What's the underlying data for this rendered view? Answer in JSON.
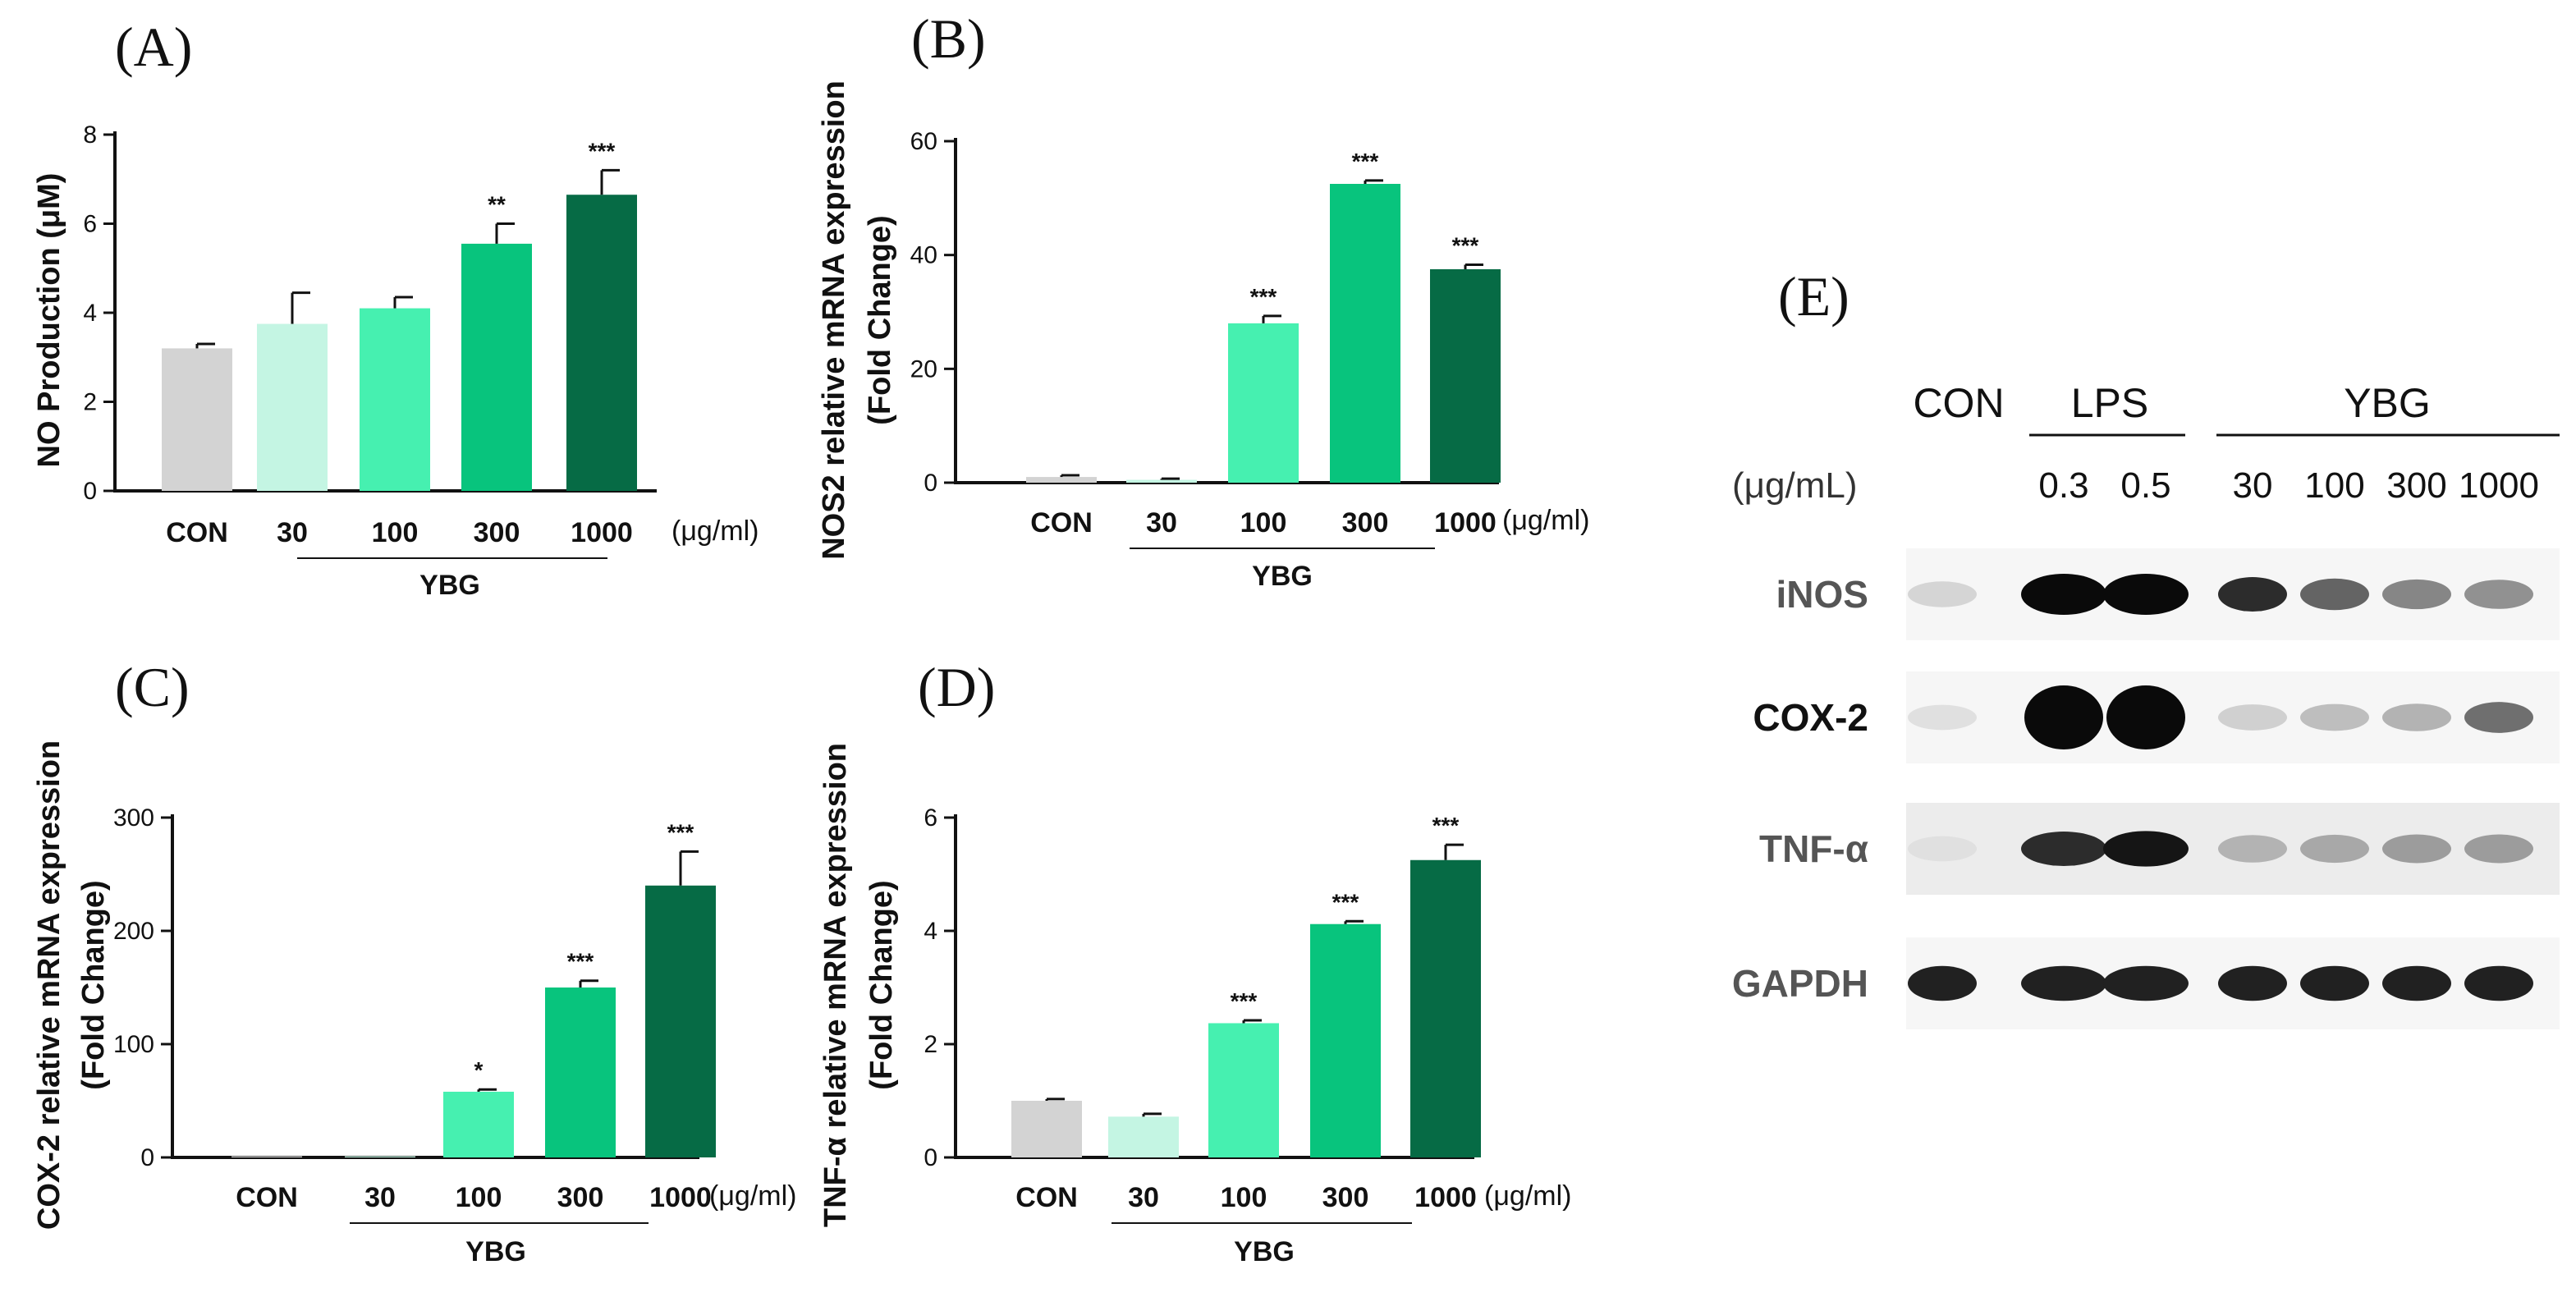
{
  "colors": {
    "CON": "#d3d3d3",
    "30": "#c4f5e3",
    "100": "#46f0b0",
    "300": "#08c47d",
    "1000": "#066b45",
    "axis": "#111111"
  },
  "chart_data": [
    {
      "panel": "(A)",
      "type": "bar",
      "categories": [
        "CON",
        "30",
        "100",
        "300",
        "1000"
      ],
      "values": [
        3.2,
        3.75,
        4.1,
        5.55,
        6.65
      ],
      "errors": [
        0.1,
        0.7,
        0.25,
        0.45,
        0.55
      ],
      "significance": [
        "",
        "",
        "",
        "**",
        "***"
      ],
      "ylabel": "NO Production (μM)",
      "ylim": [
        0,
        8
      ],
      "yticks": [
        "0",
        "2",
        "4",
        "6",
        "8"
      ],
      "unit_label": "(μg/ml)",
      "group_label": "YBG"
    },
    {
      "panel": "(B)",
      "type": "bar",
      "categories": [
        "CON",
        "30",
        "100",
        "300",
        "1000"
      ],
      "values": [
        1.0,
        0.5,
        28,
        52.5,
        37.5
      ],
      "errors": [
        0.3,
        0.2,
        1.3,
        0.6,
        0.8
      ],
      "significance": [
        "",
        "",
        "***",
        "***",
        "***"
      ],
      "ylabel": [
        "NOS2 relative mRNA expression",
        "(Fold Change)"
      ],
      "ylim": [
        0,
        60
      ],
      "yticks": [
        "0",
        "20",
        "40",
        "60"
      ],
      "unit_label": "(μg/ml)",
      "group_label": "YBG"
    },
    {
      "panel": "(C)",
      "type": "bar",
      "categories": [
        "CON",
        "30",
        "100",
        "300",
        "1000"
      ],
      "values": [
        1,
        1,
        58,
        150,
        240
      ],
      "errors": [
        0,
        0,
        2,
        6,
        30
      ],
      "significance": [
        "",
        "",
        "*",
        "***",
        "***"
      ],
      "ylabel": [
        "COX-2 relative mRNA expression",
        "(Fold Change)"
      ],
      "ylim": [
        0,
        300
      ],
      "yticks": [
        "0",
        "100",
        "200",
        "300"
      ],
      "unit_label": "(μg/ml)",
      "group_label": "YBG"
    },
    {
      "panel": "(D)",
      "type": "bar",
      "categories": [
        "CON",
        "30",
        "100",
        "300",
        "1000"
      ],
      "values": [
        1.0,
        0.72,
        2.37,
        4.12,
        5.25
      ],
      "errors": [
        0.03,
        0.05,
        0.05,
        0.05,
        0.27
      ],
      "significance": [
        "",
        "",
        "***",
        "***",
        "***"
      ],
      "ylabel": [
        "TNF-α relative mRNA expression",
        "(Fold Change)"
      ],
      "ylim": [
        0,
        6
      ],
      "yticks": [
        "0",
        "2",
        "4",
        "6"
      ],
      "unit_label": "(μg/ml)",
      "group_label": "YBG"
    }
  ],
  "western_blot": {
    "panel": "(E)",
    "headers": {
      "con": "CON",
      "lps": "LPS",
      "ybg": "YBG"
    },
    "unit": "(μg/mL)",
    "doses": [
      "0.3",
      "0.5",
      "30",
      "100",
      "300",
      "1000"
    ],
    "rows": [
      "iNOS",
      "COX-2",
      "TNF-α",
      "GAPDH"
    ],
    "band_intensity": {
      "iNOS": [
        0.1,
        1.0,
        1.0,
        0.85,
        0.6,
        0.45,
        0.4
      ],
      "COX-2": [
        0.05,
        1.0,
        1.0,
        0.12,
        0.2,
        0.25,
        0.55
      ],
      "TNF-α": [
        0.05,
        0.85,
        0.95,
        0.25,
        0.3,
        0.35,
        0.35
      ],
      "GAPDH": [
        0.9,
        0.9,
        0.9,
        0.9,
        0.9,
        0.9,
        0.9
      ]
    }
  }
}
